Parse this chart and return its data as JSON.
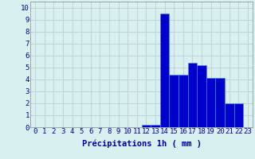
{
  "categories": [
    0,
    1,
    2,
    3,
    4,
    5,
    6,
    7,
    8,
    9,
    10,
    11,
    12,
    13,
    14,
    15,
    16,
    17,
    18,
    19,
    20,
    21,
    22,
    23
  ],
  "values": [
    0,
    0,
    0,
    0,
    0,
    0,
    0,
    0,
    0,
    0,
    0,
    0,
    0.2,
    0.2,
    9.5,
    4.4,
    4.4,
    5.4,
    5.2,
    4.1,
    4.1,
    2.0,
    2.0,
    0
  ],
  "bar_color": "#0000cc",
  "bar_edge_color": "#4488ff",
  "background_color": "#d8f0f0",
  "grid_color": "#b8c8c8",
  "xlabel": "Précipitations 1h ( mm )",
  "xlabel_fontsize": 7.5,
  "ylabel_ticks": [
    0,
    1,
    2,
    3,
    4,
    5,
    6,
    7,
    8,
    9,
    10
  ],
  "ylim": [
    0,
    10.5
  ],
  "xlim": [
    -0.5,
    23.5
  ],
  "tick_fontsize": 6.5
}
